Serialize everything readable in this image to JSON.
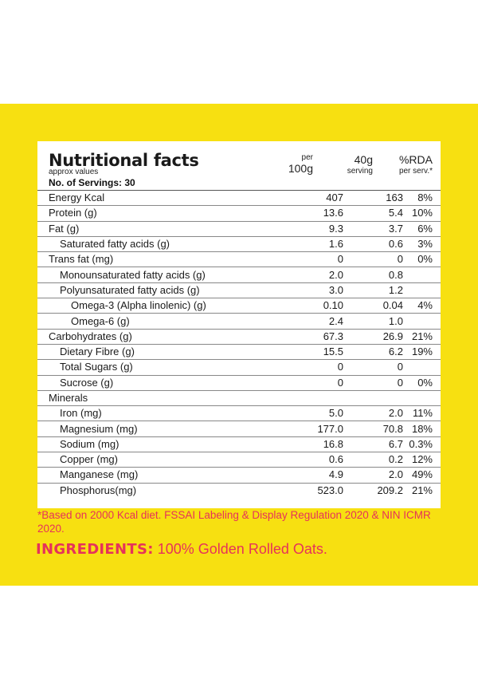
{
  "header": {
    "title": "Nutritional facts",
    "subtitle": "approx values",
    "servings": "No. of Servings: 30",
    "col_per_top": "per",
    "col_per_bottom": "100g",
    "col_serving_top": "40g",
    "col_serving_bottom": "serving",
    "col_rda_top": "%RDA",
    "col_rda_bottom": "per serv.*"
  },
  "rows": [
    {
      "name": "Energy  Kcal",
      "per100": "407",
      "serving": "163",
      "rda": "8%"
    },
    {
      "name": "Protein (g)",
      "per100": "13.6",
      "serving": "5.4",
      "rda": "10%"
    },
    {
      "name": "Fat (g)",
      "per100": "9.3",
      "serving": "3.7",
      "rda": "6%"
    },
    {
      "name": "Saturated fatty acids (g)",
      "per100": "1.6",
      "serving": "0.6",
      "rda": "3%"
    },
    {
      "name": "Trans fat  (mg)",
      "per100": "0",
      "serving": "0",
      "rda": "0%"
    },
    {
      "name": "Monounsaturated fatty acids (g)",
      "per100": "2.0",
      "serving": "0.8",
      "rda": ""
    },
    {
      "name": "Polyunsaturated fatty acids (g)",
      "per100": "3.0",
      "serving": "1.2",
      "rda": ""
    },
    {
      "name": "Omega-3 (Alpha linolenic) (g)",
      "per100": "0.10",
      "serving": "0.04",
      "rda": "4%"
    },
    {
      "name": "Omega-6 (g)",
      "per100": "2.4",
      "serving": "1.0",
      "rda": ""
    },
    {
      "name": "Carbohydrates (g)",
      "per100": "67.3",
      "serving": "26.9",
      "rda": "21%"
    },
    {
      "name": "Dietary Fibre (g)",
      "per100": "15.5",
      "serving": "6.2",
      "rda": "19%"
    },
    {
      "name": "Total Sugars (g)",
      "per100": "0",
      "serving": "0",
      "rda": ""
    },
    {
      "name": "Sucrose (g)",
      "per100": "0",
      "serving": "0",
      "rda": "0%"
    },
    {
      "name": "Minerals",
      "per100": "",
      "serving": "",
      "rda": ""
    },
    {
      "name": "Iron (mg)",
      "per100": "5.0",
      "serving": "2.0",
      "rda": "11%"
    },
    {
      "name": "Magnesium (mg)",
      "per100": "177.0",
      "serving": "70.8",
      "rda": "18%"
    },
    {
      "name": "Sodium (mg)",
      "per100": "16.8",
      "serving": "6.7",
      "rda": "0.3%"
    },
    {
      "name": "Copper (mg)",
      "per100": "0.6",
      "serving": "0.2",
      "rda": "12%"
    },
    {
      "name": "Manganese (mg)",
      "per100": "4.9",
      "serving": "2.0",
      "rda": "49%"
    },
    {
      "name": "Phosphorus(mg)",
      "per100": "523.0",
      "serving": "209.2",
      "rda": "21%"
    }
  ],
  "footnote": "*Based on 2000 Kcal diet. FSSAI Labeling & Display Regulation 2020 & NIN ICMR 2020.",
  "ingredients": {
    "label": "INGREDIENTS:",
    "text": " 100% Golden Rolled Oats."
  },
  "colors": {
    "band": "#f7e011",
    "accent": "#e6325a"
  }
}
